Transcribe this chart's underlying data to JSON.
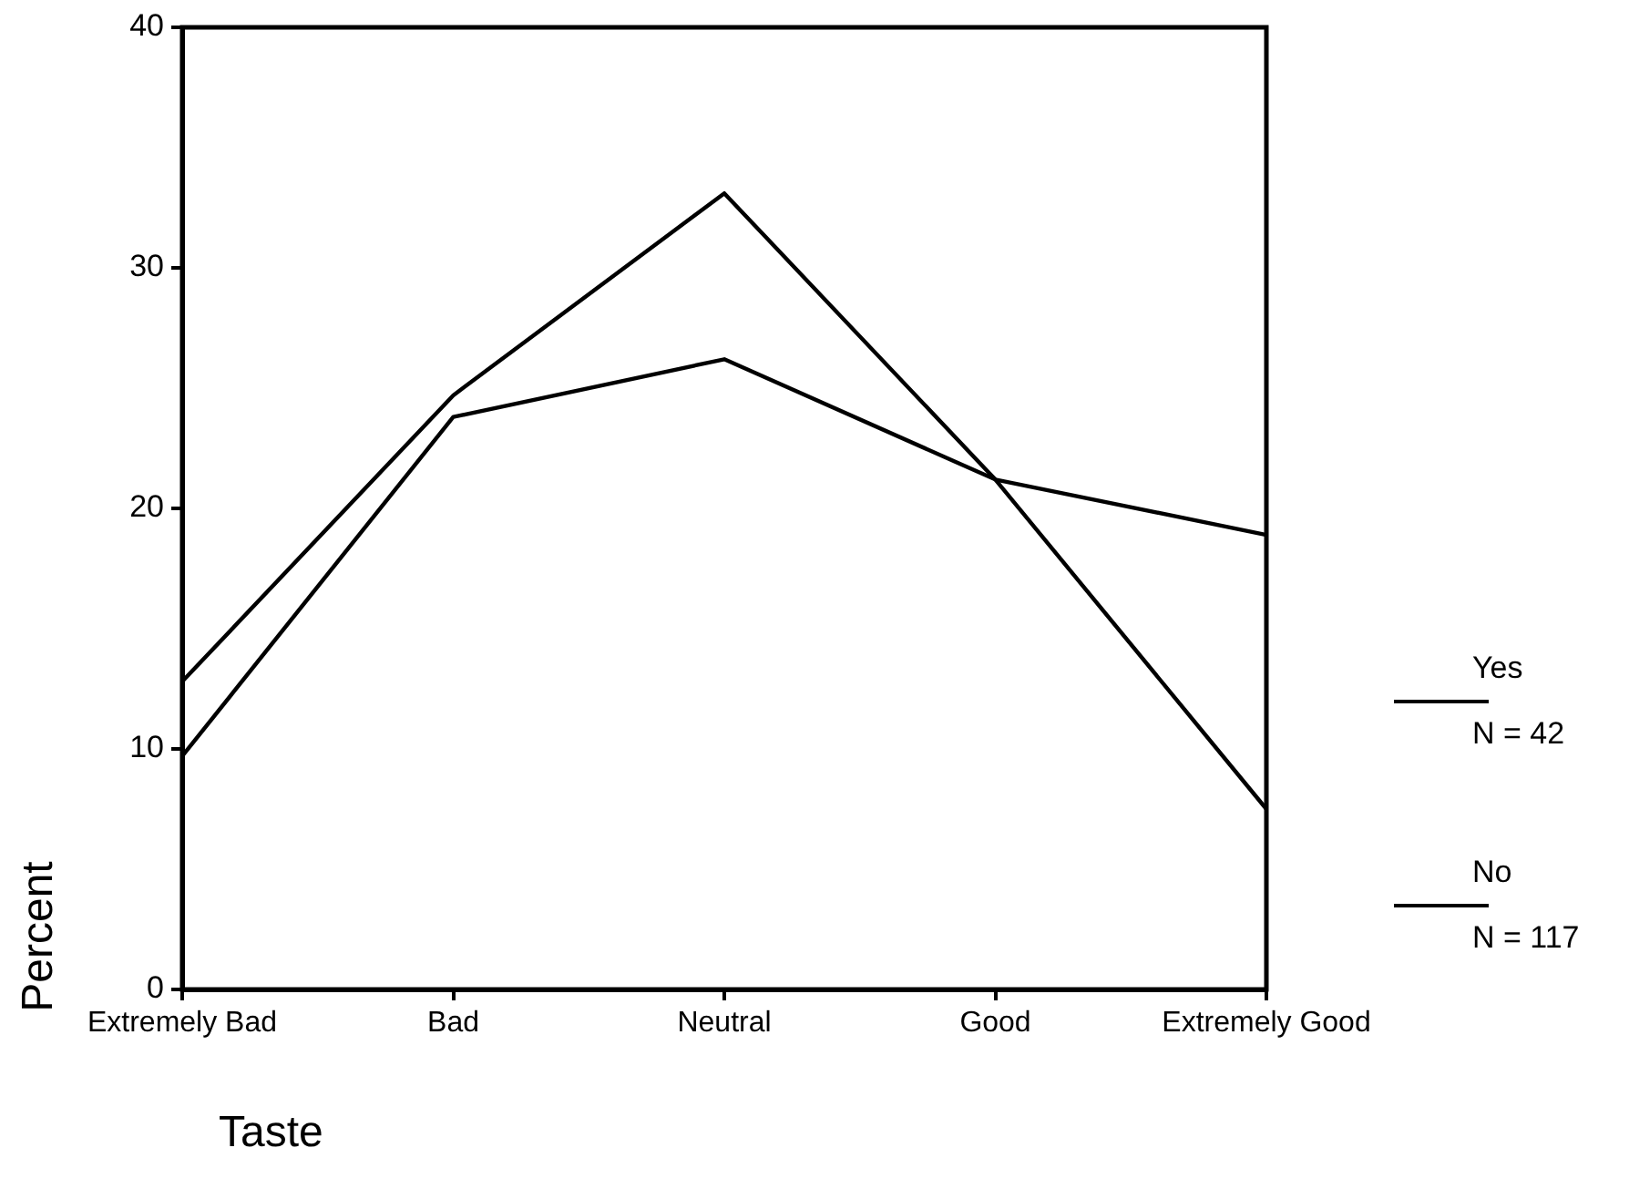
{
  "chart_data": {
    "type": "line",
    "xlabel": "Taste",
    "ylabel": "Percent",
    "categories": [
      "Extremely Bad",
      "Bad",
      "Neutral",
      "Good",
      "Extremely Good"
    ],
    "series": [
      {
        "name": "Yes",
        "color": "#000000",
        "values": [
          9.7,
          23.8,
          26.2,
          21.2,
          18.9
        ]
      },
      {
        "name": "No",
        "color": "#000000",
        "values": [
          12.8,
          24.7,
          33.1,
          21.2,
          7.5
        ]
      }
    ],
    "annotations": [
      "N = 42",
      "N = 117"
    ],
    "ylim": [
      0,
      40
    ],
    "yticks": [
      0,
      10,
      20,
      30,
      40
    ],
    "grid": false,
    "legend": "right",
    "marker": "none",
    "line_style": "solid"
  }
}
